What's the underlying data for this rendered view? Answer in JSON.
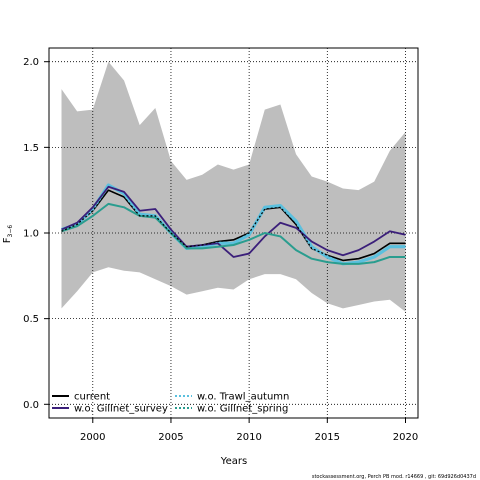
{
  "chart_data": {
    "type": "line",
    "xlabel": "Years",
    "ylabel": "F",
    "ylabel_sub": "3−6",
    "xlim": [
      1997.2,
      2020.8
    ],
    "ylim": [
      -0.08,
      2.08
    ],
    "x_ticks": [
      2000,
      2005,
      2010,
      2015,
      2020
    ],
    "y_ticks": [
      0.0,
      0.5,
      1.0,
      1.5,
      2.0
    ],
    "y_tick_labels": [
      "0.0",
      "0.5",
      "1.0",
      "1.5",
      "2.0"
    ],
    "grid": "dotted",
    "legend_placement": "bottom-left",
    "years": [
      1998,
      1999,
      2000,
      2001,
      2002,
      2003,
      2004,
      2005,
      2006,
      2007,
      2008,
      2009,
      2010,
      2011,
      2012,
      2013,
      2014,
      2015,
      2016,
      2017,
      2018,
      2019,
      2020
    ],
    "band": {
      "color": "#bebebe",
      "upper": [
        1.84,
        1.71,
        1.72,
        2.0,
        1.89,
        1.63,
        1.73,
        1.42,
        1.31,
        1.34,
        1.4,
        1.37,
        1.4,
        1.72,
        1.75,
        1.46,
        1.33,
        1.3,
        1.26,
        1.25,
        1.3,
        1.48,
        1.59
      ],
      "lower": [
        0.56,
        0.66,
        0.77,
        0.8,
        0.78,
        0.77,
        0.73,
        0.69,
        0.64,
        0.66,
        0.68,
        0.67,
        0.73,
        0.76,
        0.76,
        0.73,
        0.65,
        0.59,
        0.56,
        0.58,
        0.6,
        0.61,
        0.54
      ]
    },
    "series": [
      {
        "name": "current",
        "color": "#000000",
        "dash": "solid",
        "width": 1.6,
        "values": [
          1.01,
          1.05,
          1.13,
          1.25,
          1.21,
          1.1,
          1.1,
          1.0,
          0.92,
          0.93,
          0.95,
          0.96,
          1.0,
          1.14,
          1.15,
          1.05,
          0.91,
          0.87,
          0.84,
          0.85,
          0.88,
          0.94,
          0.94
        ]
      },
      {
        "name": "w.o. Trawl_autumn",
        "color": "#5bc0de",
        "dash": "solid",
        "width": 3.2,
        "values": [
          1.02,
          1.05,
          1.14,
          1.28,
          1.23,
          1.11,
          1.1,
          1.0,
          0.91,
          0.92,
          0.94,
          0.94,
          0.99,
          1.15,
          1.16,
          1.07,
          0.92,
          0.86,
          0.82,
          0.83,
          0.86,
          0.92,
          0.92
        ]
      },
      {
        "name": "w.o. Gillnet_survey",
        "color": "#3b1f7a",
        "dash": "solid",
        "width": 1.8,
        "values": [
          1.02,
          1.06,
          1.15,
          1.27,
          1.24,
          1.13,
          1.14,
          1.02,
          0.92,
          0.93,
          0.94,
          0.86,
          0.88,
          0.98,
          1.06,
          1.03,
          0.95,
          0.9,
          0.87,
          0.9,
          0.95,
          1.01,
          0.99
        ]
      },
      {
        "name": "w.o. Gillnet_spring",
        "color": "#2a9d8f",
        "dash": "solid",
        "width": 2.0,
        "values": [
          1.01,
          1.04,
          1.1,
          1.17,
          1.15,
          1.1,
          1.09,
          1.0,
          0.91,
          0.91,
          0.92,
          0.93,
          0.96,
          1.0,
          0.98,
          0.9,
          0.85,
          0.83,
          0.82,
          0.82,
          0.83,
          0.86,
          0.86
        ]
      },
      {
        "name": "w.o. Gillnet_spring (overlay)",
        "color": "#000000",
        "dash": "2,2",
        "width": 1.2,
        "values": [
          1.01,
          1.05,
          1.13,
          1.25,
          1.21,
          1.1,
          1.1,
          1.0,
          0.92,
          0.93,
          0.95,
          0.96,
          1.0,
          1.14,
          1.15,
          1.05,
          0.91,
          0.87,
          0.84,
          0.85,
          0.88,
          0.94,
          0.94
        ]
      }
    ],
    "legend": [
      {
        "label": "current",
        "color": "#000000",
        "style": "solid"
      },
      {
        "label": "w.o. Gillnet_survey",
        "color": "#3b1f7a",
        "style": "solid"
      },
      {
        "label": "w.o. Trawl_autumn",
        "color": "#5bc0de",
        "style": "dotted"
      },
      {
        "label": "w.o. Gillnet_spring",
        "color": "#2a9d8f",
        "style": "dotted"
      }
    ],
    "footnote": "stockassessment.org, Perch PB mod. r14669 , git: 69d926d0437d"
  }
}
